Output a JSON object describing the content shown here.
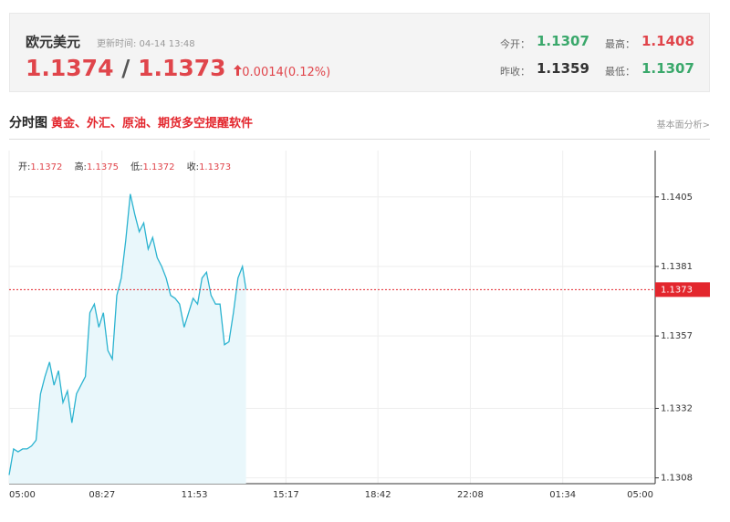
{
  "header": {
    "title": "欧元美元",
    "update": "更新时间: 04-14 13:48",
    "bid": "1.1374",
    "separator": "/",
    "ask": "1.1373",
    "change": "0.0014(0.12%)",
    "stats": [
      {
        "label": "今开：",
        "value": "1.1307"
      },
      {
        "label": "最高：",
        "value": "1.1408"
      },
      {
        "label": "昨收：",
        "value": "1.1359"
      },
      {
        "label": "最低：",
        "value": "1.1307"
      }
    ]
  },
  "section": {
    "title": "分时图",
    "promo": "黄金、外汇、原油、期货多空提醒软件",
    "link": "基本面分析>"
  },
  "ohlc": [
    {
      "label": "开:",
      "value": "1.1372"
    },
    {
      "label": "高:",
      "value": "1.1375"
    },
    {
      "label": "低:",
      "value": "1.1372"
    },
    {
      "label": "收:",
      "value": "1.1373"
    }
  ],
  "chart_data": {
    "type": "line",
    "x": [
      0,
      10,
      20,
      30,
      40,
      50,
      60,
      70,
      80,
      90,
      100,
      110,
      120,
      130,
      140,
      150,
      160,
      170,
      180,
      190,
      200,
      210,
      220,
      230,
      240,
      250,
      260,
      270,
      280,
      290,
      300,
      310,
      320,
      330,
      340,
      350,
      360,
      370,
      380,
      390,
      400,
      410,
      420,
      430,
      440,
      450,
      460,
      470,
      480,
      490,
      500,
      510,
      520,
      528
    ],
    "series": [
      {
        "color": "#2bb3d0",
        "values": [
          1.1309,
          1.1318,
          1.1317,
          1.1318,
          1.1318,
          1.1319,
          1.1321,
          1.1337,
          1.1343,
          1.1348,
          1.134,
          1.1345,
          1.1334,
          1.1338,
          1.1327,
          1.1337,
          1.134,
          1.1343,
          1.1365,
          1.1368,
          1.136,
          1.1365,
          1.1352,
          1.1349,
          1.1371,
          1.1377,
          1.139,
          1.1406,
          1.1399,
          1.1393,
          1.1396,
          1.1387,
          1.1391,
          1.1384,
          1.1381,
          1.1377,
          1.1371,
          1.137,
          1.1368,
          1.136,
          1.1365,
          1.137,
          1.1368,
          1.1377,
          1.1379,
          1.1371,
          1.1368,
          1.1368,
          1.1354,
          1.1355,
          1.1365,
          1.1377,
          1.1381,
          1.1373
        ]
      }
    ],
    "xlim": [
      0,
      1440
    ],
    "xticks": [
      {
        "value": 0,
        "label": "05:00"
      },
      {
        "value": 207,
        "label": "08:27"
      },
      {
        "value": 413,
        "label": "11:53"
      },
      {
        "value": 617,
        "label": "15:17"
      },
      {
        "value": 822,
        "label": "18:42"
      },
      {
        "value": 1028,
        "label": "22:08"
      },
      {
        "value": 1234,
        "label": "01:34"
      },
      {
        "value": 1440,
        "label": "05:00"
      }
    ],
    "ylim": [
      1.1306,
      1.1421
    ],
    "yticks": [
      1.1308,
      1.1332,
      1.1357,
      1.1381,
      1.1405
    ],
    "grid": true,
    "last_price": 1.1373
  }
}
